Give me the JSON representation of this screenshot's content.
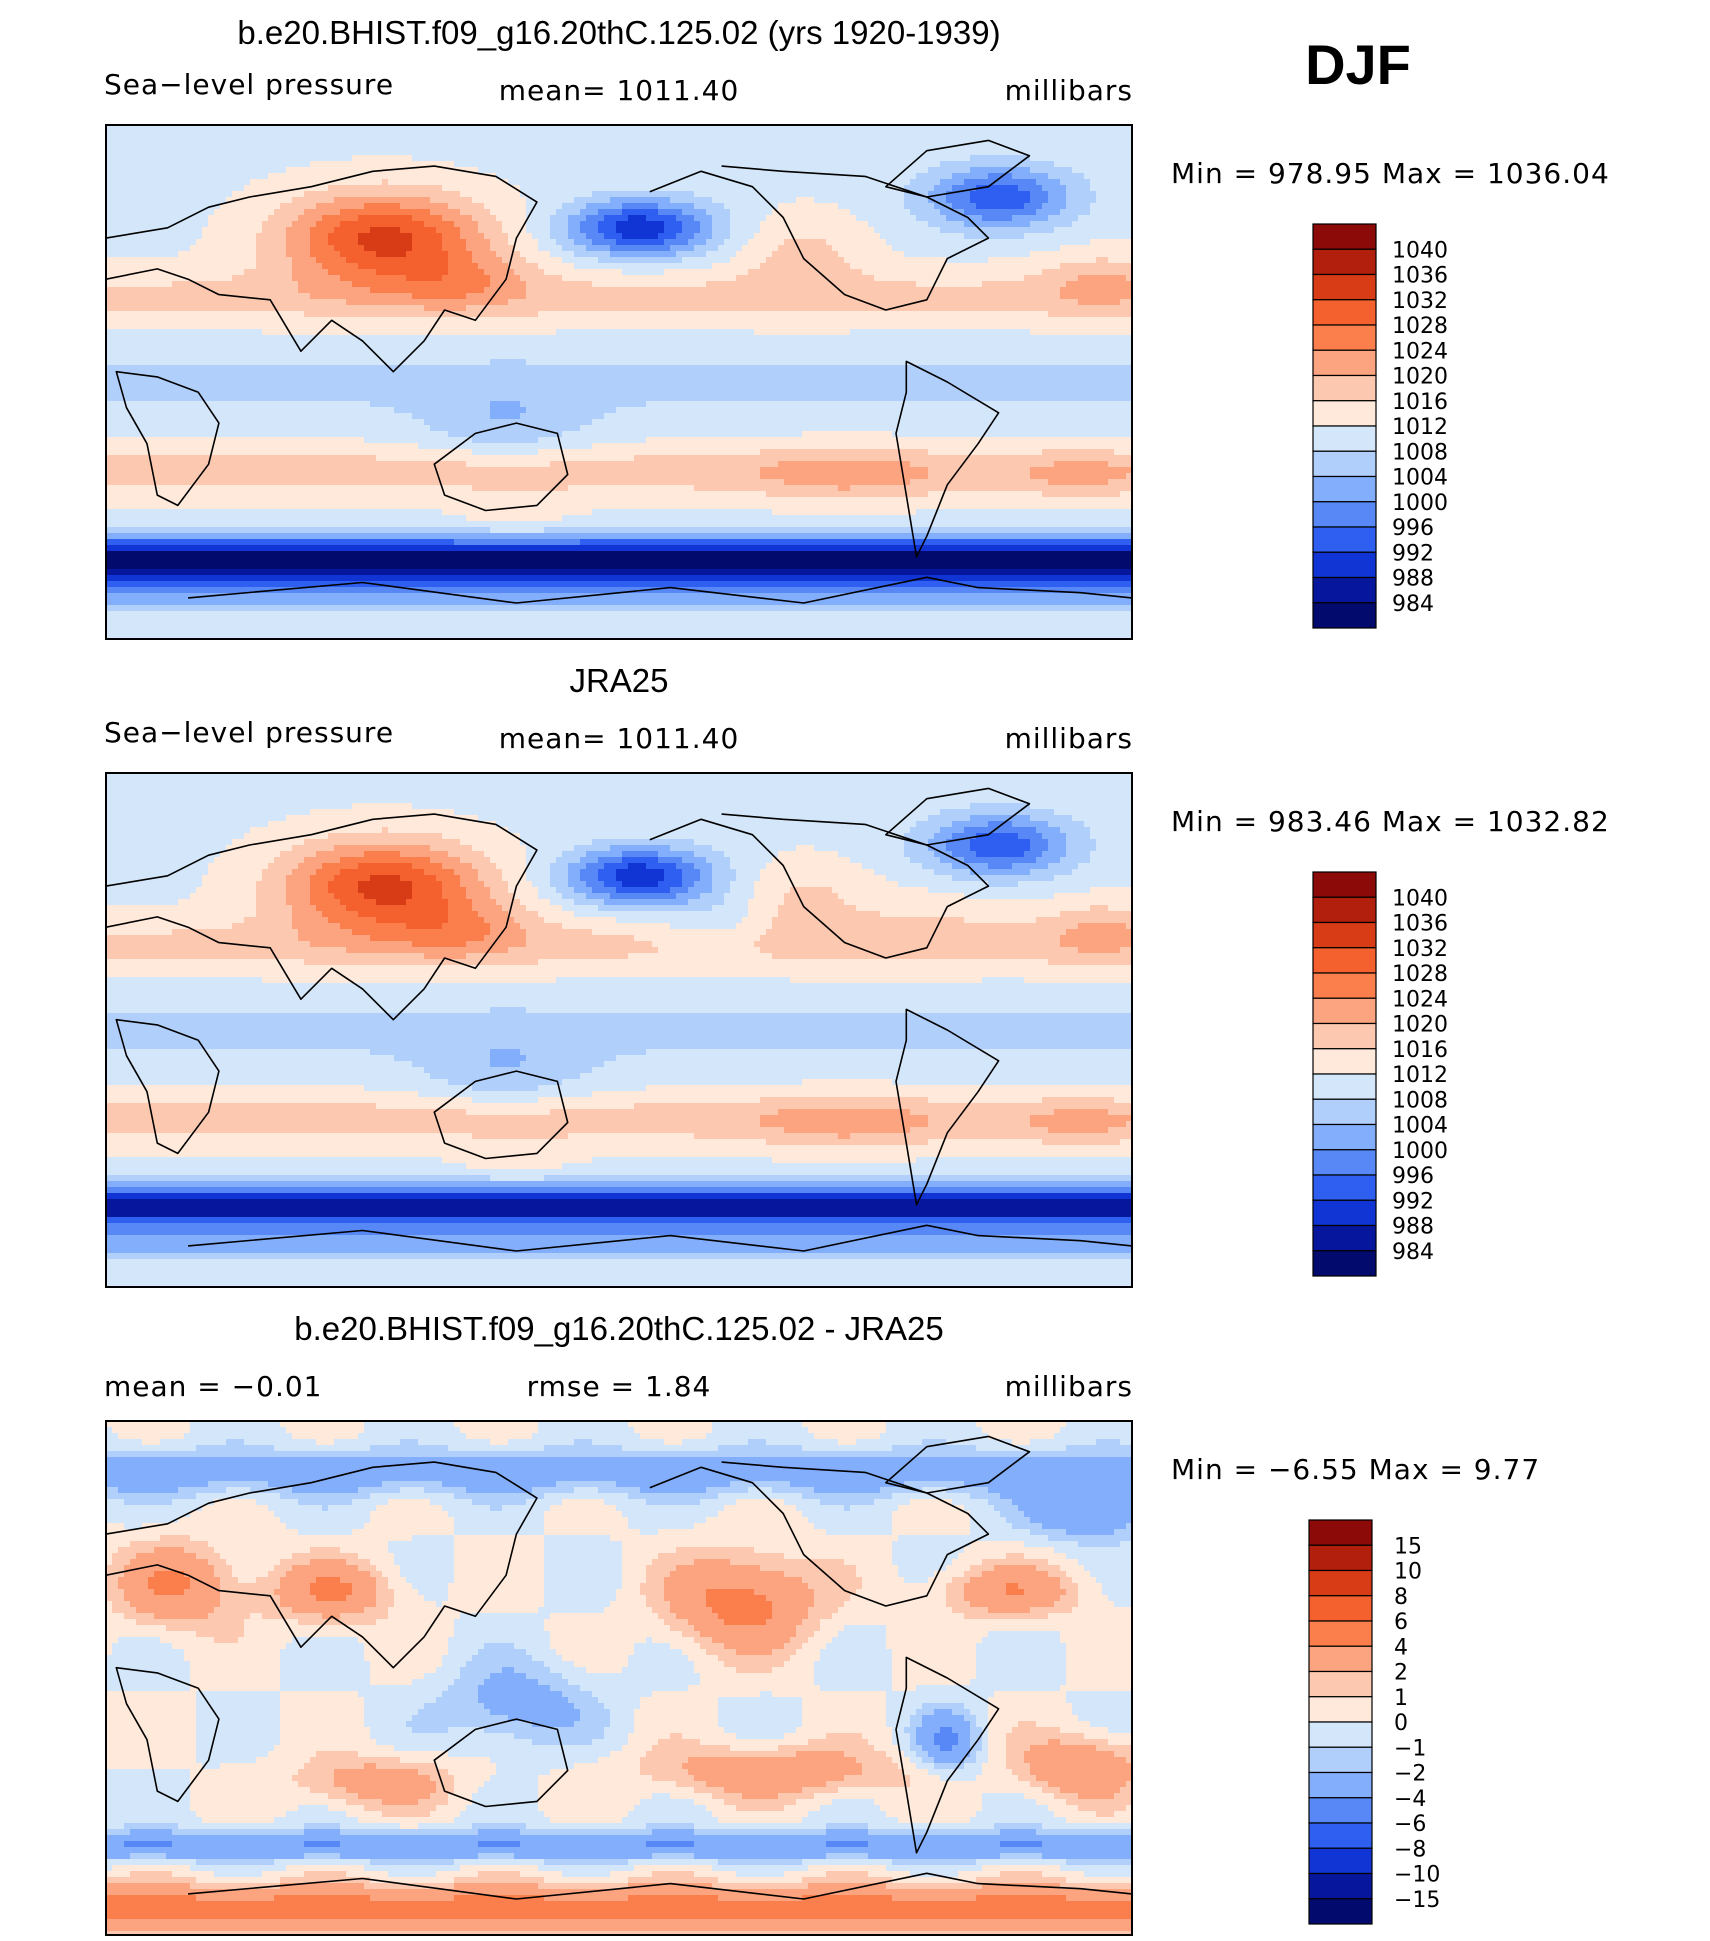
{
  "season": "DJF",
  "panels": [
    {
      "title": "b.e20.BHIST.f09_g16.20thC.125.02 (yrs 1920-1939)",
      "left": "Sea−level pressure",
      "center": "mean=  1011.40",
      "right": "millibars",
      "minmax": "Min  =  978.95  Max  =  1036.04"
    },
    {
      "title": "JRA25",
      "left": "Sea−level pressure",
      "center": "mean=  1011.40",
      "right": "millibars",
      "minmax": "Min  =  983.46  Max  =  1032.82"
    },
    {
      "title": "b.e20.BHIST.f09_g16.20thC.125.02 - JRA25",
      "left": "mean  =    −0.01",
      "center": "rmse  =     1.84",
      "right": "millibars",
      "minmax": "Min  =   −6.55  Max  =     9.77"
    }
  ],
  "chart_data": [
    {
      "type": "heatmap",
      "title": "b.e20.BHIST.f09_g16.20thC.125.02 (yrs 1920-1939)",
      "variable": "Sea-level pressure",
      "units": "millibars",
      "mean": 1011.4,
      "min": 978.95,
      "max": 1036.04,
      "colorbar_levels": [
        1040,
        1036,
        1032,
        1028,
        1024,
        1020,
        1016,
        1012,
        1008,
        1004,
        1000,
        996,
        992,
        988,
        984
      ],
      "colorbar_colors": [
        "#8c0a08",
        "#b21f0c",
        "#d83c17",
        "#f4612e",
        "#fb7f4c",
        "#fca37f",
        "#fcc8b0",
        "#fee9da",
        "#d4e6f9",
        "#b0cffa",
        "#82aefb",
        "#5788f6",
        "#2e5ff0",
        "#1035d4",
        "#06179d",
        "#030a6e"
      ]
    },
    {
      "type": "heatmap",
      "title": "JRA25",
      "variable": "Sea-level pressure",
      "units": "millibars",
      "mean": 1011.4,
      "min": 983.46,
      "max": 1032.82,
      "colorbar_levels": [
        1040,
        1036,
        1032,
        1028,
        1024,
        1020,
        1016,
        1012,
        1008,
        1004,
        1000,
        996,
        992,
        988,
        984
      ],
      "colorbar_colors": [
        "#8c0a08",
        "#b21f0c",
        "#d83c17",
        "#f4612e",
        "#fb7f4c",
        "#fca37f",
        "#fcc8b0",
        "#fee9da",
        "#d4e6f9",
        "#b0cffa",
        "#82aefb",
        "#5788f6",
        "#2e5ff0",
        "#1035d4",
        "#06179d",
        "#030a6e"
      ]
    },
    {
      "type": "heatmap",
      "title": "b.e20.BHIST.f09_g16.20thC.125.02 - JRA25",
      "units": "millibars",
      "mean": -0.01,
      "rmse": 1.84,
      "min": -6.55,
      "max": 9.77,
      "colorbar_levels": [
        15,
        10,
        8,
        6,
        4,
        2,
        1,
        0,
        -1,
        -2,
        -4,
        -6,
        -8,
        -10,
        -15
      ],
      "colorbar_level_labels": [
        "15",
        "10",
        "8",
        "6",
        "4",
        "2",
        "1",
        "0",
        "−1",
        "−2",
        "−4",
        "−6",
        "−8",
        "−10",
        "−15"
      ],
      "colorbar_colors": [
        "#8c0a08",
        "#b21f0c",
        "#d83c17",
        "#f4612e",
        "#fb7f4c",
        "#fca37f",
        "#fcc8b0",
        "#fee9da",
        "#d4e6f9",
        "#b0cffa",
        "#82aefb",
        "#5788f6",
        "#2e5ff0",
        "#1035d4",
        "#06179d",
        "#030a6e"
      ]
    }
  ]
}
